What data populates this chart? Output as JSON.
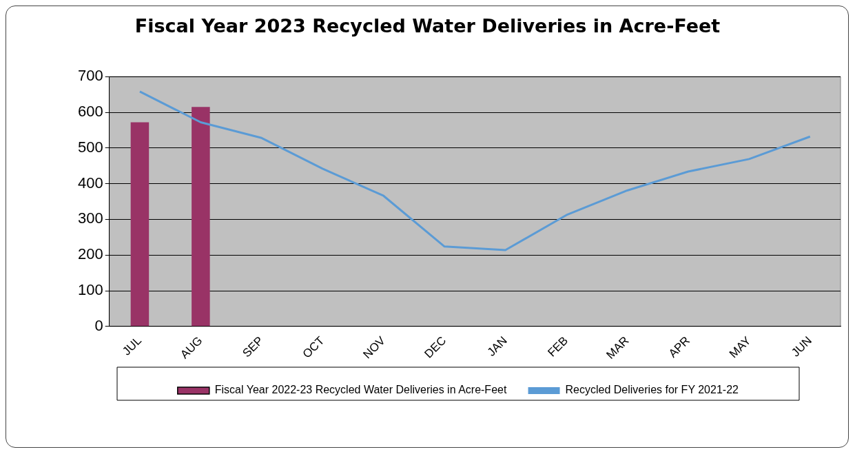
{
  "chart_data": {
    "type": "bar",
    "title": "Fiscal Year 2023 Recycled Water Deliveries in Acre-Feet",
    "categories": [
      "JUL",
      "AUG",
      "SEP",
      "OCT",
      "NOV",
      "DEC",
      "JAN",
      "FEB",
      "MAR",
      "APR",
      "MAY",
      "JUN"
    ],
    "series": [
      {
        "name": "Fiscal Year 2022-23 Recycled Water Deliveries in Acre-Feet",
        "color": "#993366",
        "values": [
          572,
          615,
          null,
          null,
          null,
          null,
          null,
          null,
          null,
          null,
          null,
          null
        ]
      },
      {
        "name": "Recycled Deliveries for FY 2021-22",
        "type": "line",
        "color": "#5b9bd5",
        "values": [
          658,
          572,
          528,
          442,
          366,
          224,
          214,
          312,
          381,
          434,
          469,
          532
        ]
      }
    ],
    "ylim": [
      0,
      700
    ],
    "yticks": [
      0,
      100,
      200,
      300,
      400,
      500,
      600,
      700
    ],
    "grid": "y",
    "legend": "bottom",
    "marker": "none"
  }
}
